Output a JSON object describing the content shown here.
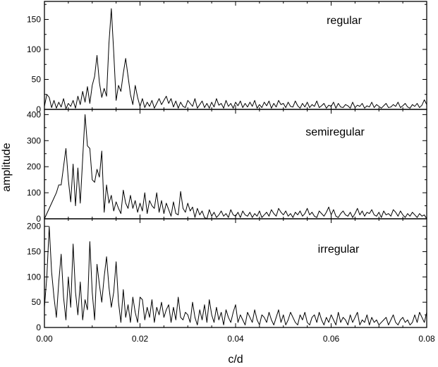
{
  "chart_data": {
    "type": "line",
    "xlabel": "c/d",
    "ylabel": "amplitude",
    "xlim": [
      0,
      0.08
    ],
    "xticks": [
      "0.00",
      "0.02",
      "0.04",
      "0.06",
      "0.08"
    ],
    "colors": {
      "line": "#000000",
      "axes": "#000000",
      "background": "#ffffff"
    },
    "panels": [
      {
        "title": "regular",
        "ylim": [
          0,
          180
        ],
        "yticks": [
          "0",
          "50",
          "100",
          "150"
        ],
        "x": [
          0.0,
          0.0005,
          0.001,
          0.0015,
          0.002,
          0.0025,
          0.003,
          0.0035,
          0.004,
          0.0045,
          0.005,
          0.0055,
          0.006,
          0.0065,
          0.007,
          0.0075,
          0.008,
          0.0085,
          0.009,
          0.0095,
          0.01,
          0.0105,
          0.011,
          0.0115,
          0.012,
          0.0125,
          0.013,
          0.0135,
          0.014,
          0.0145,
          0.015,
          0.0155,
          0.016,
          0.0165,
          0.017,
          0.0175,
          0.018,
          0.0185,
          0.019,
          0.0195,
          0.02,
          0.0205,
          0.021,
          0.0215,
          0.022,
          0.0225,
          0.023,
          0.0235,
          0.024,
          0.0245,
          0.025,
          0.0255,
          0.026,
          0.0265,
          0.027,
          0.0275,
          0.028,
          0.0285,
          0.029,
          0.0295,
          0.03,
          0.0305,
          0.031,
          0.0315,
          0.032,
          0.0325,
          0.033,
          0.0335,
          0.034,
          0.0345,
          0.035,
          0.0355,
          0.036,
          0.0365,
          0.037,
          0.0375,
          0.038,
          0.0385,
          0.039,
          0.0395,
          0.04,
          0.0405,
          0.041,
          0.0415,
          0.042,
          0.0425,
          0.043,
          0.0435,
          0.044,
          0.0445,
          0.045,
          0.0455,
          0.046,
          0.0465,
          0.047,
          0.0475,
          0.048,
          0.0485,
          0.049,
          0.0495,
          0.05,
          0.0505,
          0.051,
          0.0515,
          0.052,
          0.0525,
          0.053,
          0.0535,
          0.054,
          0.0545,
          0.055,
          0.0555,
          0.056,
          0.0565,
          0.057,
          0.0575,
          0.058,
          0.0585,
          0.059,
          0.0595,
          0.06,
          0.0605,
          0.061,
          0.0615,
          0.062,
          0.0625,
          0.063,
          0.0635,
          0.064,
          0.0645,
          0.065,
          0.0655,
          0.066,
          0.0665,
          0.067,
          0.0675,
          0.068,
          0.0685,
          0.069,
          0.0695,
          0.07,
          0.0705,
          0.071,
          0.0715,
          0.072,
          0.0725,
          0.073,
          0.0735,
          0.074,
          0.0745,
          0.075,
          0.0755,
          0.076,
          0.0765,
          0.077,
          0.0775,
          0.078,
          0.0785,
          0.079,
          0.0795,
          0.08
        ],
        "y": [
          5,
          25,
          20,
          3,
          15,
          2,
          12,
          4,
          18,
          1,
          10,
          5,
          15,
          2,
          22,
          8,
          30,
          12,
          38,
          10,
          40,
          55,
          90,
          45,
          20,
          35,
          22,
          110,
          168,
          95,
          15,
          40,
          30,
          60,
          85,
          55,
          25,
          8,
          40,
          20,
          5,
          18,
          3,
          12,
          5,
          15,
          2,
          10,
          18,
          8,
          15,
          22,
          10,
          18,
          4,
          14,
          2,
          12,
          5,
          3,
          15,
          10,
          5,
          18,
          2,
          8,
          14,
          3,
          10,
          2,
          12,
          4,
          18,
          7,
          10,
          2,
          15,
          5,
          10,
          2,
          12,
          6,
          14,
          3,
          10,
          4,
          12,
          5,
          15,
          2,
          8,
          3,
          12,
          6,
          14,
          2,
          10,
          4,
          15,
          8,
          10,
          3,
          12,
          5,
          4,
          14,
          6,
          2,
          10,
          4,
          12,
          3,
          8,
          5,
          14,
          3,
          6,
          10,
          2,
          7,
          5,
          12,
          2,
          10,
          4,
          3,
          8,
          6,
          2,
          12,
          3,
          7,
          5,
          10,
          2,
          6,
          4,
          12,
          3,
          8,
          5,
          2,
          6,
          10,
          3,
          4,
          8,
          5,
          12,
          3,
          6,
          10,
          4,
          2,
          8,
          5,
          10,
          3,
          7,
          16,
          8
        ]
      },
      {
        "title": "semiregular",
        "ylim": [
          0,
          420
        ],
        "yticks": [
          "0",
          "100",
          "200",
          "300",
          "400"
        ],
        "x": [
          0.0,
          0.0005,
          0.001,
          0.0015,
          0.002,
          0.0025,
          0.003,
          0.0035,
          0.004,
          0.0045,
          0.005,
          0.0055,
          0.006,
          0.0065,
          0.007,
          0.0075,
          0.008,
          0.0085,
          0.009,
          0.0095,
          0.01,
          0.0105,
          0.011,
          0.0115,
          0.012,
          0.0125,
          0.013,
          0.0135,
          0.014,
          0.0145,
          0.015,
          0.0155,
          0.016,
          0.0165,
          0.017,
          0.0175,
          0.018,
          0.0185,
          0.019,
          0.0195,
          0.02,
          0.0205,
          0.021,
          0.0215,
          0.022,
          0.0225,
          0.023,
          0.0235,
          0.024,
          0.0245,
          0.025,
          0.0255,
          0.026,
          0.0265,
          0.027,
          0.0275,
          0.028,
          0.0285,
          0.029,
          0.0295,
          0.03,
          0.0305,
          0.031,
          0.0315,
          0.032,
          0.0325,
          0.033,
          0.0335,
          0.034,
          0.0345,
          0.035,
          0.0355,
          0.036,
          0.0365,
          0.037,
          0.0375,
          0.038,
          0.0385,
          0.039,
          0.0395,
          0.04,
          0.0405,
          0.041,
          0.0415,
          0.042,
          0.0425,
          0.043,
          0.0435,
          0.044,
          0.0445,
          0.045,
          0.0455,
          0.046,
          0.0465,
          0.047,
          0.0475,
          0.048,
          0.0485,
          0.049,
          0.0495,
          0.05,
          0.0505,
          0.051,
          0.0515,
          0.052,
          0.0525,
          0.053,
          0.0535,
          0.054,
          0.0545,
          0.055,
          0.0555,
          0.056,
          0.0565,
          0.057,
          0.0575,
          0.058,
          0.0585,
          0.059,
          0.0595,
          0.06,
          0.0605,
          0.061,
          0.0615,
          0.062,
          0.0625,
          0.063,
          0.0635,
          0.064,
          0.0645,
          0.065,
          0.0655,
          0.066,
          0.0665,
          0.067,
          0.0675,
          0.068,
          0.0685,
          0.069,
          0.0695,
          0.07,
          0.0705,
          0.071,
          0.0715,
          0.072,
          0.0725,
          0.073,
          0.0735,
          0.074,
          0.0745,
          0.075,
          0.0755,
          0.076,
          0.0765,
          0.077,
          0.0775,
          0.078,
          0.0785,
          0.079,
          0.0795,
          0.08
        ],
        "y": [
          0,
          20,
          40,
          60,
          80,
          100,
          130,
          130,
          200,
          270,
          150,
          65,
          210,
          50,
          195,
          60,
          230,
          400,
          280,
          270,
          150,
          140,
          190,
          160,
          260,
          25,
          130,
          60,
          90,
          30,
          65,
          40,
          20,
          110,
          60,
          40,
          90,
          40,
          70,
          25,
          60,
          30,
          100,
          20,
          70,
          50,
          40,
          100,
          25,
          70,
          20,
          60,
          35,
          10,
          65,
          20,
          15,
          105,
          40,
          25,
          60,
          30,
          45,
          5,
          40,
          15,
          30,
          5,
          0,
          35,
          10,
          25,
          5,
          15,
          30,
          10,
          20,
          5,
          35,
          15,
          10,
          25,
          5,
          30,
          15,
          10,
          25,
          5,
          20,
          10,
          30,
          5,
          15,
          25,
          10,
          35,
          20,
          10,
          40,
          25,
          15,
          30,
          10,
          20,
          5,
          25,
          15,
          30,
          10,
          20,
          40,
          15,
          25,
          10,
          5,
          30,
          20,
          10,
          25,
          45,
          15,
          35,
          10,
          5,
          20,
          30,
          15,
          10,
          25,
          5,
          20,
          40,
          15,
          30,
          10,
          25,
          20,
          35,
          15,
          10,
          25,
          5,
          30,
          15,
          20,
          10,
          35,
          25,
          10,
          30,
          15,
          5,
          20,
          10,
          25,
          15,
          5,
          20,
          10,
          15,
          0
        ]
      },
      {
        "title": "irregular",
        "ylim": [
          0,
          215
        ],
        "yticks": [
          "0",
          "50",
          "100",
          "150",
          "200"
        ],
        "x": [
          0.0,
          0.0005,
          0.001,
          0.0015,
          0.002,
          0.0025,
          0.003,
          0.0035,
          0.004,
          0.0045,
          0.005,
          0.0055,
          0.006,
          0.0065,
          0.007,
          0.0075,
          0.008,
          0.0085,
          0.009,
          0.0095,
          0.01,
          0.0105,
          0.011,
          0.0115,
          0.012,
          0.0125,
          0.013,
          0.0135,
          0.014,
          0.0145,
          0.015,
          0.0155,
          0.016,
          0.0165,
          0.017,
          0.0175,
          0.018,
          0.0185,
          0.019,
          0.0195,
          0.02,
          0.0205,
          0.021,
          0.0215,
          0.022,
          0.0225,
          0.023,
          0.0235,
          0.024,
          0.0245,
          0.025,
          0.0255,
          0.026,
          0.0265,
          0.027,
          0.0275,
          0.028,
          0.0285,
          0.029,
          0.0295,
          0.03,
          0.0305,
          0.031,
          0.0315,
          0.032,
          0.0325,
          0.033,
          0.0335,
          0.034,
          0.0345,
          0.035,
          0.0355,
          0.036,
          0.0365,
          0.037,
          0.0375,
          0.038,
          0.0385,
          0.039,
          0.0395,
          0.04,
          0.0405,
          0.041,
          0.0415,
          0.042,
          0.0425,
          0.043,
          0.0435,
          0.044,
          0.0445,
          0.045,
          0.0455,
          0.046,
          0.0465,
          0.047,
          0.0475,
          0.048,
          0.0485,
          0.049,
          0.0495,
          0.05,
          0.0505,
          0.051,
          0.0515,
          0.052,
          0.0525,
          0.053,
          0.0535,
          0.054,
          0.0545,
          0.055,
          0.0555,
          0.056,
          0.0565,
          0.057,
          0.0575,
          0.058,
          0.0585,
          0.059,
          0.0595,
          0.06,
          0.0605,
          0.061,
          0.0615,
          0.062,
          0.0625,
          0.063,
          0.0635,
          0.064,
          0.0645,
          0.065,
          0.0655,
          0.066,
          0.0665,
          0.067,
          0.0675,
          0.068,
          0.0685,
          0.069,
          0.0695,
          0.07,
          0.0705,
          0.071,
          0.0715,
          0.072,
          0.0725,
          0.073,
          0.0735,
          0.074,
          0.0745,
          0.075,
          0.0755,
          0.076,
          0.0765,
          0.077,
          0.0775,
          0.078,
          0.0785,
          0.079,
          0.0795,
          0.08
        ],
        "y": [
          40,
          100,
          200,
          110,
          60,
          20,
          90,
          145,
          60,
          15,
          100,
          40,
          165,
          70,
          25,
          90,
          15,
          55,
          35,
          170,
          70,
          15,
          125,
          85,
          50,
          100,
          140,
          80,
          40,
          70,
          130,
          50,
          10,
          75,
          20,
          45,
          10,
          60,
          30,
          10,
          60,
          55,
          15,
          40,
          20,
          55,
          10,
          40,
          25,
          50,
          20,
          35,
          45,
          10,
          40,
          15,
          60,
          20,
          15,
          30,
          25,
          10,
          50,
          20,
          5,
          35,
          15,
          45,
          10,
          55,
          25,
          10,
          40,
          15,
          30,
          5,
          35,
          20,
          10,
          30,
          45,
          10,
          25,
          15,
          5,
          30,
          20,
          10,
          35,
          15,
          5,
          25,
          20,
          10,
          30,
          15,
          5,
          20,
          35,
          10,
          25,
          5,
          15,
          30,
          20,
          10,
          5,
          25,
          15,
          30,
          10,
          5,
          20,
          25,
          10,
          30,
          15,
          5,
          20,
          10,
          25,
          15,
          5,
          30,
          10,
          20,
          15,
          5,
          25,
          10,
          20,
          30,
          5,
          15,
          10,
          25,
          5,
          20,
          10,
          15,
          5,
          10,
          15,
          20,
          5,
          15,
          25,
          10,
          5,
          15,
          20,
          10,
          15,
          5,
          10,
          25,
          10,
          30,
          20,
          10,
          30
        ]
      }
    ]
  }
}
